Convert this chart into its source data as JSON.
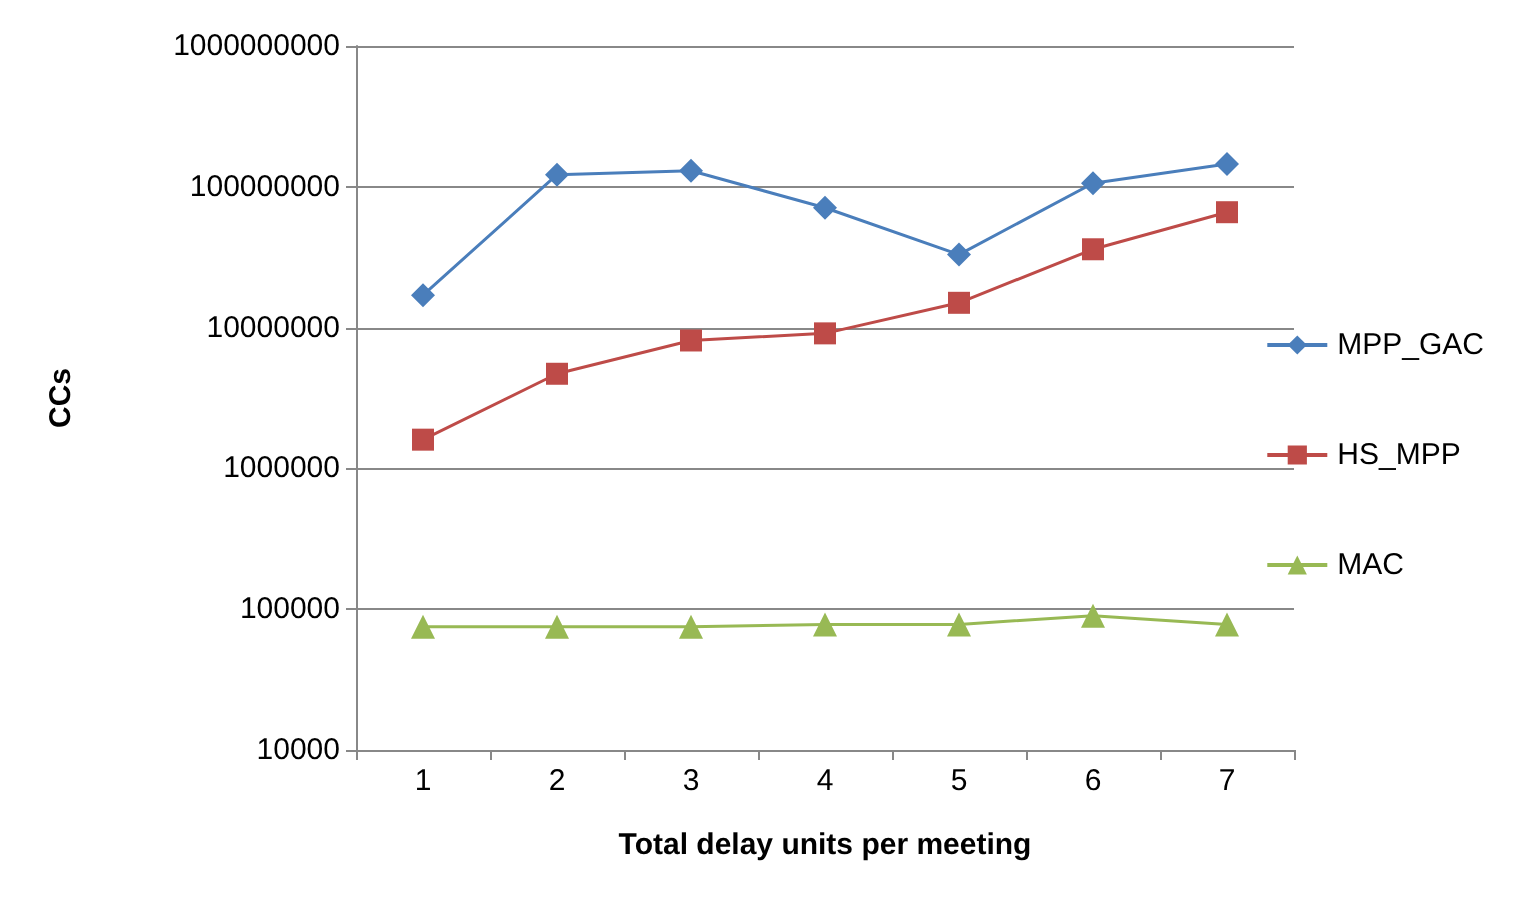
{
  "chart_data": {
    "type": "line",
    "xlabel": "Total delay units per meeting",
    "ylabel": "CCs",
    "categories": [
      "1",
      "2",
      "3",
      "4",
      "5",
      "6",
      "7"
    ],
    "series": [
      {
        "name": "MPP_GAC",
        "color": "#4a7ebb",
        "marker": "diamond",
        "values": [
          17000000,
          122000000,
          130000000,
          71000000,
          33000000,
          106000000,
          145000000
        ]
      },
      {
        "name": "HS_MPP",
        "color": "#be4b48",
        "marker": "square",
        "values": [
          1600000,
          4700000,
          8100000,
          9100000,
          15000000,
          36000000,
          66000000
        ]
      },
      {
        "name": "MAC",
        "color": "#98b954",
        "marker": "triangle",
        "values": [
          75000,
          75000,
          75000,
          78000,
          78000,
          90000,
          78000
        ]
      }
    ],
    "log": "y",
    "ylim": [
      10000,
      1000000000
    ],
    "yticks": [
      10000,
      100000,
      1000000,
      10000000,
      100000000,
      1000000000
    ],
    "grid": "y",
    "legend": "right",
    "line_style": "solid"
  }
}
